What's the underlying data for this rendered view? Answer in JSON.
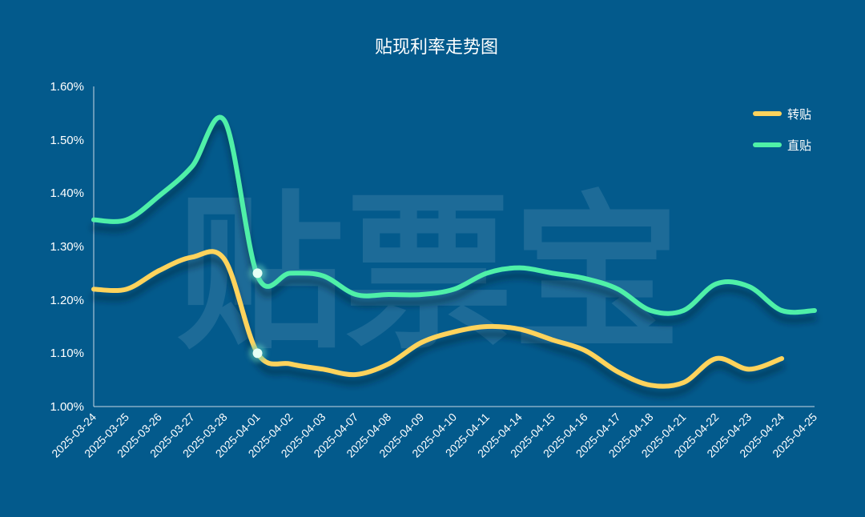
{
  "watermark": "贴票宝",
  "colors": {
    "background": "#035a8c",
    "zhuantie": "#ffd35c",
    "zhitie": "#4ff0a8",
    "marker": "#e6fff5"
  },
  "chart_data": {
    "type": "line",
    "title": "贴现利率走势图",
    "xlabel": "",
    "ylabel": "",
    "ylim": [
      1.0,
      1.6
    ],
    "yticks": [
      "1.00%",
      "1.10%",
      "1.20%",
      "1.30%",
      "1.40%",
      "1.50%",
      "1.60%"
    ],
    "grid": false,
    "legend_position": "top-right",
    "categories": [
      "2025-03-24",
      "2025-03-25",
      "2025-03-26",
      "2025-03-27",
      "2025-03-28",
      "2025-04-01",
      "2025-04-02",
      "2025-04-03",
      "2025-04-07",
      "2025-04-08",
      "2025-04-09",
      "2025-04-10",
      "2025-04-11",
      "2025-04-14",
      "2025-04-15",
      "2025-04-16",
      "2025-04-17",
      "2025-04-18",
      "2025-04-21",
      "2025-04-22",
      "2025-04-23",
      "2025-04-24",
      "2025-04-25"
    ],
    "series": [
      {
        "name": "转贴",
        "values": [
          1.22,
          1.22,
          1.255,
          1.28,
          1.275,
          1.1,
          1.08,
          1.07,
          1.06,
          1.08,
          1.12,
          1.14,
          1.15,
          1.145,
          1.125,
          1.105,
          1.065,
          1.04,
          1.045,
          1.09,
          1.07,
          1.09,
          null
        ]
      },
      {
        "name": "直贴",
        "values": [
          1.35,
          1.35,
          1.395,
          1.45,
          1.535,
          1.245,
          1.25,
          1.245,
          1.21,
          1.21,
          1.21,
          1.22,
          1.25,
          1.26,
          1.25,
          1.24,
          1.22,
          1.18,
          1.18,
          1.23,
          1.225,
          1.18,
          1.18
        ]
      }
    ],
    "markers": [
      {
        "category": "2025-04-01",
        "value": 1.25
      },
      {
        "category": "2025-04-01",
        "value": 1.1
      }
    ]
  }
}
